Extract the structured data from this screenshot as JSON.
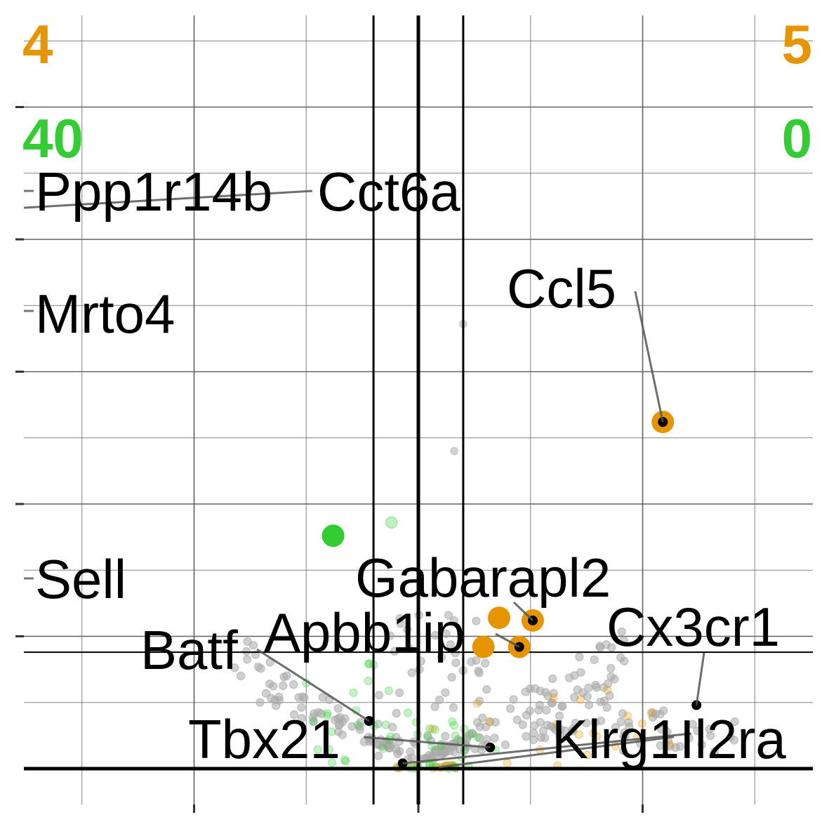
{
  "chart_data": {
    "type": "scatter",
    "title": "",
    "xlabel": "",
    "ylabel": "",
    "xlim": [
      -1.9,
      1.75
    ],
    "ylim": [
      0,
      38
    ],
    "x_ticks": [
      -1,
      0,
      1
    ],
    "y_ticks": [
      0,
      5,
      10,
      15,
      20,
      25,
      30
    ],
    "fold_change_threshold": 0.2,
    "significance_threshold": 4.4,
    "counts": {
      "up_left": "4",
      "up_right": "5",
      "down_left": "40",
      "down_right": "0"
    },
    "colors": {
      "up": "#E69500",
      "down": "#33CC33",
      "ns": "#A9A9A9",
      "axis": "#000000",
      "grid": "#5a5a5a"
    },
    "labeled_genes": [
      {
        "name": "Ppp1r14b",
        "x": -1.9,
        "y": 32.1
      },
      {
        "name": "Cct6a",
        "x": -0.48,
        "y": 33.0
      },
      {
        "name": "Ccl5",
        "x": 1.09,
        "y": 13.1
      },
      {
        "name": "Mrto4",
        "x": -1.9,
        "y": 27.1
      },
      {
        "name": "Sell",
        "x": -1.9,
        "y": 7.0
      },
      {
        "name": "Gabarapl2",
        "x": 0.51,
        "y": 5.6
      },
      {
        "name": "Apbb1ip",
        "x": 0.45,
        "y": 4.6
      },
      {
        "name": "Cx3cr1",
        "x": 1.24,
        "y": 2.4
      },
      {
        "name": "Batf",
        "x": -0.22,
        "y": 1.8
      },
      {
        "name": "Tbx21",
        "x": -0.07,
        "y": 0.2
      },
      {
        "name": "Klrg1",
        "x": 0.32,
        "y": 0.8
      },
      {
        "name": "Il2ra",
        "x": 1.14,
        "y": 1.2
      }
    ],
    "up_points": [
      [
        0.36,
        5.7
      ],
      [
        0.29,
        4.6
      ]
    ],
    "down_points": [
      [
        -0.38,
        8.8
      ]
    ],
    "ns_points": [
      [
        0.2,
        16.8
      ],
      [
        0.16,
        12.0
      ]
    ],
    "label_text": {
      "Ppp1r14b": "Ppp1r14b",
      "Cct6a": "Cct6a",
      "Ccl5": "Ccl5",
      "Mrto4": "Mrto4",
      "Sell": "Sell",
      "Gabarapl2": "Gabarapl2",
      "Apbb1ip": "Apbb1ip",
      "Cx3cr1": "Cx3cr1",
      "Batf": "Batf",
      "Tbx21": "Tbx21",
      "Klrg1": "Klrg1",
      "Il2ra": "Il2ra"
    }
  }
}
